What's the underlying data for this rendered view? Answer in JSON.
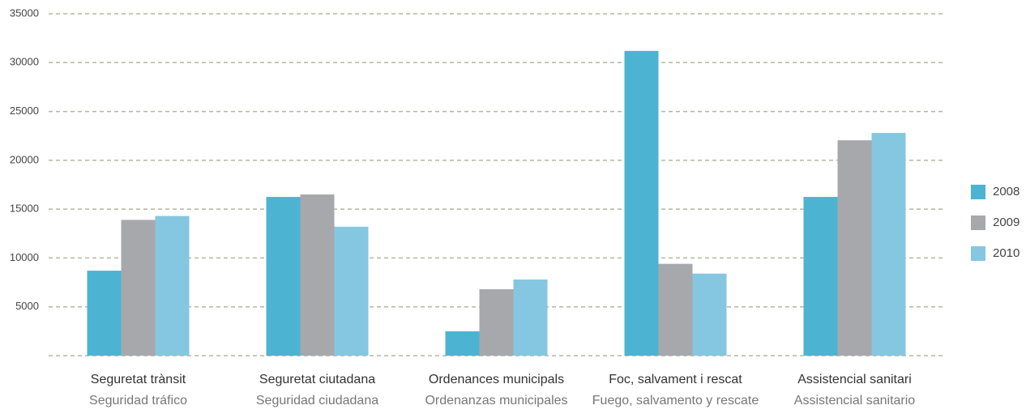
{
  "chart_data": {
    "type": "bar",
    "categories": [
      [
        "Seguretat trànsit",
        "Seguridad tráfico"
      ],
      [
        "Seguretat ciutadana",
        "Seguridad ciudadana"
      ],
      [
        "Ordenances municipals",
        "Ordenanzas municipales"
      ],
      [
        "Foc, salvament i rescat",
        "Fuego, salvamento y rescate"
      ],
      [
        "Assistencial sanitari",
        "Assistencial sanitario"
      ]
    ],
    "series": [
      {
        "name": "2008",
        "color": "#4db3d2",
        "values": [
          8700,
          16250,
          2500,
          31200,
          16250
        ]
      },
      {
        "name": "2009",
        "color": "#a7a8ac",
        "values": [
          13900,
          16500,
          6800,
          9400,
          22050
        ]
      },
      {
        "name": "2010",
        "color": "#85c7e0",
        "values": [
          14300,
          13200,
          7800,
          8400,
          22800
        ]
      }
    ],
    "ylim": [
      0,
      35000
    ],
    "yticks": [
      5000,
      10000,
      15000,
      20000,
      25000,
      30000,
      35000
    ],
    "grid": true,
    "legend": "right"
  }
}
